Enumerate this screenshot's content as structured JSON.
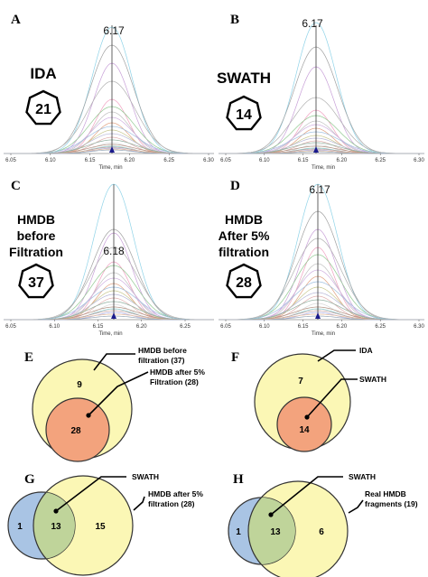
{
  "panels": {
    "A": {
      "letter": "A",
      "method": [
        "IDA"
      ],
      "count": "21",
      "peak": "6.17",
      "x_ticks": [
        "6.05",
        "6.10",
        "6.15",
        "6.20",
        "6.25",
        "6.30"
      ],
      "x_title": "Time, min"
    },
    "B": {
      "letter": "B",
      "method": [
        "SWATH"
      ],
      "count": "14",
      "peak": "6.17",
      "x_ticks": [
        "6.05",
        "6.10",
        "6.15",
        "6.20",
        "6.25",
        "6.30"
      ],
      "x_title": "Time, min"
    },
    "C": {
      "letter": "C",
      "method": [
        "HMDB",
        "before",
        "Filtration"
      ],
      "count": "37",
      "peak": "6.18",
      "x_ticks": [
        "6.05",
        "6.10",
        "6.15",
        "6.20",
        "6.25"
      ],
      "x_title": "Time, min"
    },
    "D": {
      "letter": "D",
      "method": [
        "HMDB",
        "After 5%",
        "filtration"
      ],
      "count": "28",
      "peak": "6.17",
      "x_ticks": [
        "6.05",
        "6.10",
        "6.15",
        "6.20",
        "6.25",
        "6.30"
      ],
      "x_title": "Time, min"
    }
  },
  "venn": {
    "E": {
      "letter": "E",
      "outer_count": "9",
      "inner_count": "28",
      "callout_outer": [
        "HMDB before",
        "filtration (37)"
      ],
      "callout_inner": [
        "HMDB after 5%",
        "Filtration (28)"
      ]
    },
    "F": {
      "letter": "F",
      "outer_count": "7",
      "inner_count": "14",
      "callout_outer": [
        "IDA"
      ],
      "callout_inner": [
        "SWATH"
      ]
    },
    "G": {
      "letter": "G",
      "left_count": "1",
      "overlap_count": "13",
      "right_count": "15",
      "callout_left": [
        "SWATH"
      ],
      "callout_right": [
        "HMDB after 5%",
        "filtration (28)"
      ]
    },
    "H": {
      "letter": "H",
      "left_count": "1",
      "overlap_count": "13",
      "right_count": "6",
      "callout_left": [
        "SWATH"
      ],
      "callout_right": [
        "Real HMDB",
        "fragments (19)"
      ]
    }
  },
  "colors": {
    "venn_yellow": "#fbf7b5",
    "venn_orange": "#f3a37d",
    "venn_blue": "#a9c4e4",
    "venn_green": "#bfd49a",
    "marker_arrow": "#1a1a8c"
  }
}
